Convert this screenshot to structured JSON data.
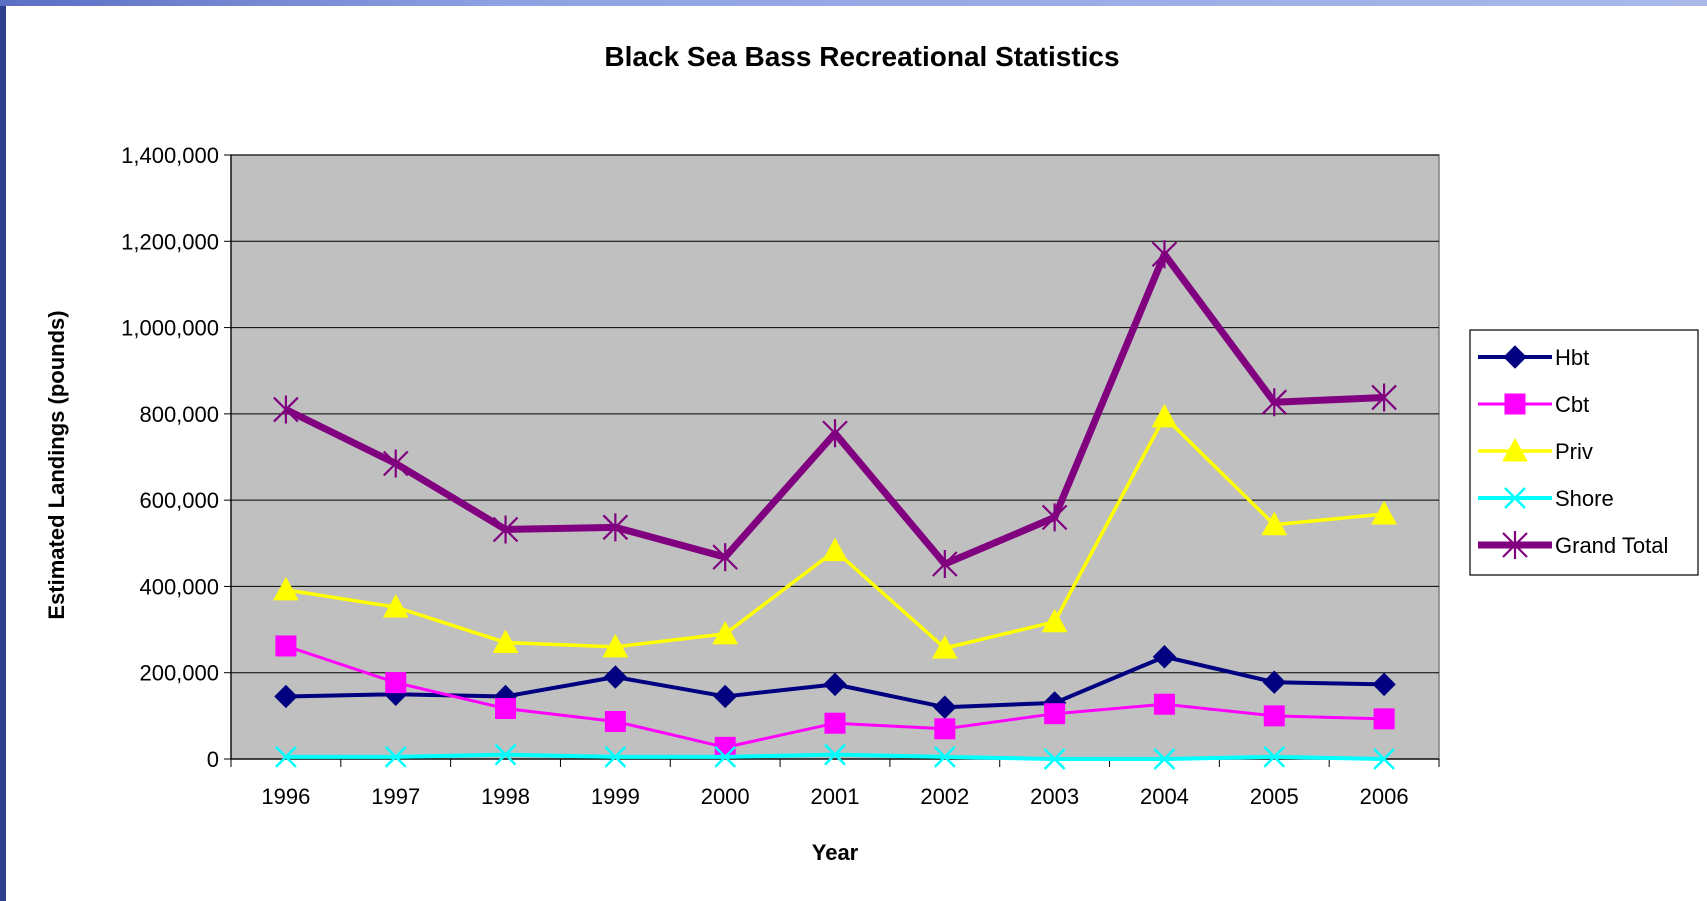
{
  "chart_data": {
    "type": "line",
    "title": "Black Sea Bass Recreational Statistics",
    "xlabel": "Year",
    "ylabel": "Estimated Landings (pounds)",
    "ylim": [
      0,
      1400000
    ],
    "yticks": [
      0,
      200000,
      400000,
      600000,
      800000,
      1000000,
      1200000,
      1400000
    ],
    "ytick_labels": [
      "0",
      "200,000",
      "400,000",
      "600,000",
      "800,000",
      "1,000,000",
      "1,200,000",
      "1,400,000"
    ],
    "grid": true,
    "legend_position": "right",
    "plot_background": "#c0c0c0",
    "categories": [
      "1996",
      "1997",
      "1998",
      "1999",
      "2000",
      "2001",
      "2002",
      "2003",
      "2004",
      "2005",
      "2006"
    ],
    "series": [
      {
        "name": "Hbt",
        "color": "#000080",
        "marker": "diamond",
        "values": [
          145000,
          150000,
          145000,
          190000,
          145000,
          173000,
          120000,
          130000,
          237000,
          178000,
          173000
        ]
      },
      {
        "name": "Cbt",
        "color": "#ff00ff",
        "marker": "square",
        "values": [
          262000,
          177000,
          117000,
          87000,
          27000,
          83000,
          70000,
          105000,
          127000,
          100000,
          93000
        ]
      },
      {
        "name": "Priv",
        "color": "#ffff00",
        "marker": "triangle",
        "values": [
          392000,
          352000,
          270000,
          260000,
          290000,
          483000,
          257000,
          318000,
          793000,
          543000,
          568000
        ]
      },
      {
        "name": "Shore",
        "color": "#00ffff",
        "marker": "x",
        "values": [
          5000,
          5000,
          10000,
          5000,
          5000,
          10000,
          5000,
          0,
          0,
          5000,
          0
        ]
      },
      {
        "name": "Grand Total",
        "color": "#800080",
        "marker": "star",
        "values": [
          810000,
          685000,
          532000,
          537000,
          468000,
          755000,
          452000,
          560000,
          1170000,
          827000,
          838000
        ]
      }
    ]
  }
}
